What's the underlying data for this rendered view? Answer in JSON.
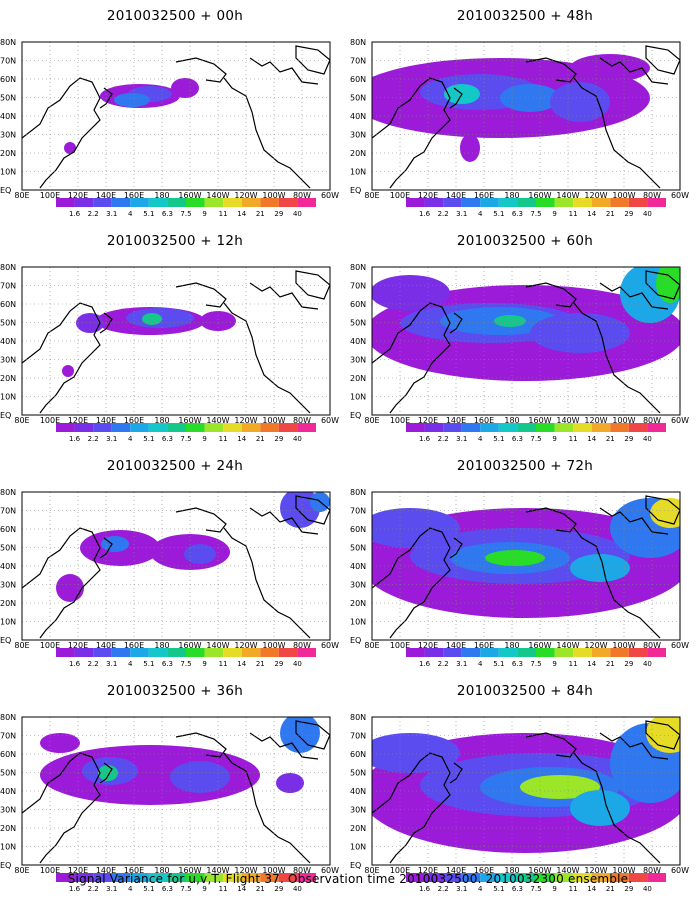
{
  "panels": [
    {
      "title": "2010032500 + 00h"
    },
    {
      "title": "2010032500 + 48h"
    },
    {
      "title": "2010032500 + 12h"
    },
    {
      "title": "2010032500 + 60h"
    },
    {
      "title": "2010032500 + 24h"
    },
    {
      "title": "2010032500 + 72h"
    },
    {
      "title": "2010032500 + 36h"
    },
    {
      "title": "2010032500 + 84h"
    }
  ],
  "lat_labels": [
    "80N",
    "70N",
    "60N",
    "50N",
    "40N",
    "30N",
    "20N",
    "10N",
    "EQ"
  ],
  "lon_labels": [
    "80E",
    "100E",
    "120E",
    "140E",
    "160E",
    "180",
    "160W",
    "140W",
    "120W",
    "100W",
    "80W",
    "60W"
  ],
  "colorbar": {
    "levels": [
      "1.6",
      "2.2",
      "3.1",
      "4",
      "5.1",
      "6.3",
      "7.5",
      "9",
      "11",
      "14",
      "21",
      "29",
      "40"
    ],
    "colors": [
      "#9b1bd8",
      "#7a2ee6",
      "#5b4cf0",
      "#2f78f0",
      "#1ca8e6",
      "#14c8c8",
      "#14c88c",
      "#28dc28",
      "#9be628",
      "#e6dc28",
      "#f0aa28",
      "#f07828",
      "#f04646",
      "#f02898"
    ]
  },
  "footer": "Signal Variance for u,v,T. Flight 37. Observation time 2010032500. 2010032300 ensemble."
}
